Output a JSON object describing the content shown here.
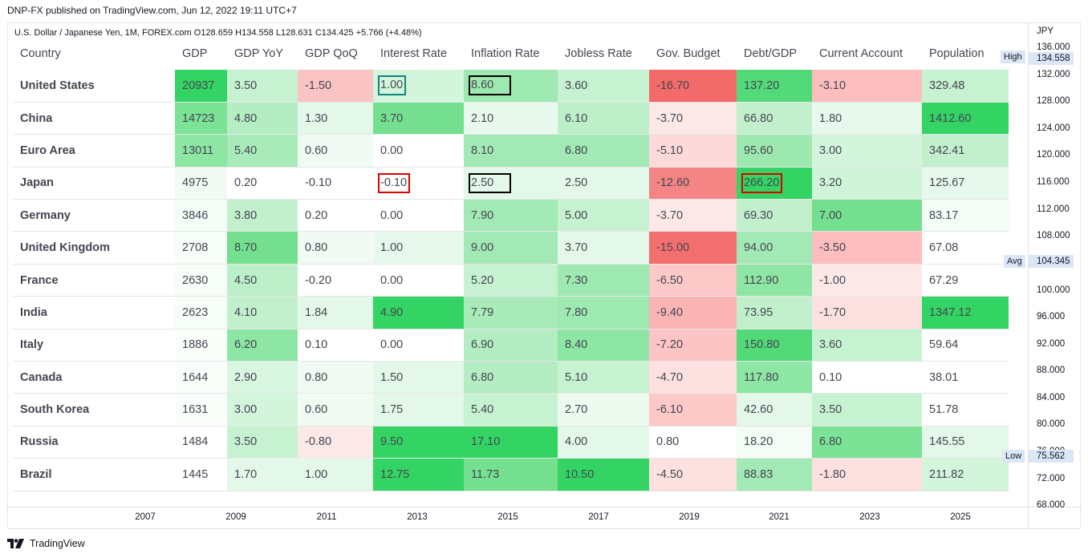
{
  "published": "DNP-FX published on TradingView.com, Jun 12, 2022 19:11 UTC+7",
  "symbol_line": "U.S. Dollar / Japanese Yen, 1M, FOREX.com  O128.659  H134.558  L128.631  C134.425  +5.766 (+4.48%)",
  "currency": "JPY",
  "price_ticks": [
    "136.000",
    "132.000",
    "128.000",
    "124.000",
    "120.000",
    "116.000",
    "112.000",
    "108.000",
    "100.000",
    "96.000",
    "92.000",
    "88.000",
    "84.000",
    "80.000",
    "76.000",
    "72.000",
    "68.000"
  ],
  "tags": {
    "high_label": "High",
    "high_value": "134.558",
    "avg_label": "Avg",
    "avg_value": "104.345",
    "low_label": "Low",
    "low_value": "75.562"
  },
  "time_ticks": [
    "2007",
    "2009",
    "2011",
    "2013",
    "2015",
    "2017",
    "2019",
    "2021",
    "2023",
    "2025"
  ],
  "brand": "TradingView",
  "colors": {
    "green_strong": "#33d463",
    "green_mid": "#74e08f",
    "green_light": "#b4edc2",
    "green_pale": "#e4f8e9",
    "red_strong": "#f36f6f",
    "red_mid": "#fbb4b4",
    "red_light": "#fde0e0",
    "neutral": "#ffffff"
  },
  "table": {
    "headers": [
      "Country",
      "GDP",
      "GDP YoY",
      "GDP QoQ",
      "Interest Rate",
      "Inflation Rate",
      "Jobless Rate",
      "Gov. Budget",
      "Debt/GDP",
      "Current Account",
      "Population"
    ],
    "rows": [
      {
        "country": "United States",
        "cells": [
          {
            "v": "20937",
            "c": "#33d463"
          },
          {
            "v": "3.50",
            "c": "#c7f2d1"
          },
          {
            "v": "-1.50",
            "c": "#fbc4c4"
          },
          {
            "v": "1.00",
            "c": "#d3f5dc",
            "box": "teal"
          },
          {
            "v": "8.60",
            "c": "#9ee8b1",
            "box": "black"
          },
          {
            "v": "3.60",
            "c": "#c7f2d1"
          },
          {
            "v": "-16.70",
            "c": "#f36a6a"
          },
          {
            "v": "137.20",
            "c": "#52d978"
          },
          {
            "v": "-3.10",
            "c": "#fbbdbd"
          },
          {
            "v": "329.48",
            "c": "#c7f2d1"
          }
        ]
      },
      {
        "country": "China",
        "cells": [
          {
            "v": "14723",
            "c": "#7ce295"
          },
          {
            "v": "4.80",
            "c": "#b4edc2"
          },
          {
            "v": "1.30",
            "c": "#e4f8e9"
          },
          {
            "v": "3.70",
            "c": "#74e08f"
          },
          {
            "v": "2.10",
            "c": "#eaf9ee"
          },
          {
            "v": "6.10",
            "c": "#bdefc9"
          },
          {
            "v": "-3.70",
            "c": "#fde8e8"
          },
          {
            "v": "66.80",
            "c": "#c2f0cd"
          },
          {
            "v": "1.80",
            "c": "#e7f9ec"
          },
          {
            "v": "1412.60",
            "c": "#33d463"
          }
        ]
      },
      {
        "country": "Euro Area",
        "cells": [
          {
            "v": "13011",
            "c": "#8de6a3"
          },
          {
            "v": "5.40",
            "c": "#a8ebb9"
          },
          {
            "v": "0.60",
            "c": "#f1fbf4"
          },
          {
            "v": "0.00",
            "c": "#ffffff"
          },
          {
            "v": "8.10",
            "c": "#a3e9b5"
          },
          {
            "v": "6.80",
            "c": "#a3e9b5"
          },
          {
            "v": "-5.10",
            "c": "#fdd9d9"
          },
          {
            "v": "95.60",
            "c": "#9ce8ae"
          },
          {
            "v": "3.00",
            "c": "#d3f5dc"
          },
          {
            "v": "342.41",
            "c": "#c2f0cd"
          }
        ]
      },
      {
        "country": "Japan",
        "cells": [
          {
            "v": "4975",
            "c": "#f1fbf4"
          },
          {
            "v": "0.20",
            "c": "#ffffff"
          },
          {
            "v": "-0.10",
            "c": "#ffffff"
          },
          {
            "v": "-0.10",
            "c": "#ffffff",
            "box": "red"
          },
          {
            "v": "2.50",
            "c": "#e4f8e9",
            "box": "black"
          },
          {
            "v": "2.50",
            "c": "#e4f8e9"
          },
          {
            "v": "-12.60",
            "c": "#f58585"
          },
          {
            "v": "266.20",
            "c": "#33d463",
            "box": "red"
          },
          {
            "v": "3.20",
            "c": "#d0f4da"
          },
          {
            "v": "125.67",
            "c": "#e7f9ec"
          }
        ]
      },
      {
        "country": "Germany",
        "cells": [
          {
            "v": "3846",
            "c": "#f4fcf6"
          },
          {
            "v": "3.80",
            "c": "#c2f0cd"
          },
          {
            "v": "0.20",
            "c": "#ffffff"
          },
          {
            "v": "0.00",
            "c": "#ffffff"
          },
          {
            "v": "7.90",
            "c": "#a3e9b5"
          },
          {
            "v": "5.00",
            "c": "#c7f2d1"
          },
          {
            "v": "-3.70",
            "c": "#fde8e8"
          },
          {
            "v": "69.30",
            "c": "#c2f0cd"
          },
          {
            "v": "7.00",
            "c": "#74e08f"
          },
          {
            "v": "83.17",
            "c": "#f4fcf6"
          }
        ]
      },
      {
        "country": "United Kingdom",
        "cells": [
          {
            "v": "2708",
            "c": "#f7fdf8"
          },
          {
            "v": "8.70",
            "c": "#74e08f"
          },
          {
            "v": "0.80",
            "c": "#f1fbf4"
          },
          {
            "v": "1.00",
            "c": "#e7f9ec"
          },
          {
            "v": "9.00",
            "c": "#a3e9b5"
          },
          {
            "v": "3.70",
            "c": "#e4f8e9"
          },
          {
            "v": "-15.00",
            "c": "#f36f6f"
          },
          {
            "v": "94.00",
            "c": "#a3e9b5"
          },
          {
            "v": "-3.50",
            "c": "#fbbdbd"
          },
          {
            "v": "67.08",
            "c": "#ffffff"
          }
        ]
      },
      {
        "country": "France",
        "cells": [
          {
            "v": "2630",
            "c": "#f7fdf8"
          },
          {
            "v": "4.50",
            "c": "#bdefc9"
          },
          {
            "v": "-0.20",
            "c": "#ffffff"
          },
          {
            "v": "0.00",
            "c": "#ffffff"
          },
          {
            "v": "5.20",
            "c": "#c7f2d1"
          },
          {
            "v": "7.30",
            "c": "#9ee8b1"
          },
          {
            "v": "-6.50",
            "c": "#fcc8c8"
          },
          {
            "v": "112.90",
            "c": "#8de6a3"
          },
          {
            "v": "-1.00",
            "c": "#fde8e8"
          },
          {
            "v": "67.29",
            "c": "#ffffff"
          }
        ]
      },
      {
        "country": "India",
        "cells": [
          {
            "v": "2623",
            "c": "#f7fdf8"
          },
          {
            "v": "4.10",
            "c": "#c2f0cd"
          },
          {
            "v": "1.84",
            "c": "#e4f8e9"
          },
          {
            "v": "4.90",
            "c": "#33d463"
          },
          {
            "v": "7.79",
            "c": "#a8ebb9"
          },
          {
            "v": "7.80",
            "c": "#9ee8b1"
          },
          {
            "v": "-9.40",
            "c": "#fbb4b4"
          },
          {
            "v": "73.95",
            "c": "#c2f0cd"
          },
          {
            "v": "-1.70",
            "c": "#fde0e0"
          },
          {
            "v": "1347.12",
            "c": "#33d463"
          }
        ]
      },
      {
        "country": "Italy",
        "cells": [
          {
            "v": "1886",
            "c": "#fafefb"
          },
          {
            "v": "6.20",
            "c": "#8de6a3"
          },
          {
            "v": "0.10",
            "c": "#ffffff"
          },
          {
            "v": "0.00",
            "c": "#ffffff"
          },
          {
            "v": "6.90",
            "c": "#b4edc2"
          },
          {
            "v": "8.40",
            "c": "#8de6a3"
          },
          {
            "v": "-7.20",
            "c": "#fcc4c4"
          },
          {
            "v": "150.80",
            "c": "#52d978"
          },
          {
            "v": "3.60",
            "c": "#c7f2d1"
          },
          {
            "v": "59.64",
            "c": "#ffffff"
          }
        ]
      },
      {
        "country": "Canada",
        "cells": [
          {
            "v": "1644",
            "c": "#fafefb"
          },
          {
            "v": "2.90",
            "c": "#d9f6e1"
          },
          {
            "v": "0.80",
            "c": "#f1fbf4"
          },
          {
            "v": "1.50",
            "c": "#e4f8e9"
          },
          {
            "v": "6.80",
            "c": "#b4edc2"
          },
          {
            "v": "5.10",
            "c": "#c7f2d1"
          },
          {
            "v": "-4.70",
            "c": "#fde0e0"
          },
          {
            "v": "117.80",
            "c": "#8de6a3"
          },
          {
            "v": "0.10",
            "c": "#ffffff"
          },
          {
            "v": "38.01",
            "c": "#ffffff"
          }
        ]
      },
      {
        "country": "South Korea",
        "cells": [
          {
            "v": "1631",
            "c": "#fafefb"
          },
          {
            "v": "3.00",
            "c": "#d3f5dc"
          },
          {
            "v": "0.60",
            "c": "#f1fbf4"
          },
          {
            "v": "1.75",
            "c": "#e4f8e9"
          },
          {
            "v": "5.40",
            "c": "#c7f2d1"
          },
          {
            "v": "2.70",
            "c": "#ecfaf0"
          },
          {
            "v": "-6.10",
            "c": "#fcc8c8"
          },
          {
            "v": "42.60",
            "c": "#e4f8e9"
          },
          {
            "v": "3.50",
            "c": "#c7f2d1"
          },
          {
            "v": "51.78",
            "c": "#ffffff"
          }
        ]
      },
      {
        "country": "Russia",
        "cells": [
          {
            "v": "1484",
            "c": "#ffffff"
          },
          {
            "v": "3.50",
            "c": "#c7f2d1"
          },
          {
            "v": "-0.80",
            "c": "#fde8e8"
          },
          {
            "v": "9.50",
            "c": "#33d463"
          },
          {
            "v": "17.10",
            "c": "#33d463"
          },
          {
            "v": "4.00",
            "c": "#e4f8e9"
          },
          {
            "v": "0.80",
            "c": "#ffffff"
          },
          {
            "v": "18.20",
            "c": "#f4fcf6"
          },
          {
            "v": "6.80",
            "c": "#7ce295"
          },
          {
            "v": "145.55",
            "c": "#e4f8e9"
          }
        ]
      },
      {
        "country": "Brazil",
        "cells": [
          {
            "v": "1445",
            "c": "#ffffff"
          },
          {
            "v": "1.70",
            "c": "#e4f8e9"
          },
          {
            "v": "1.00",
            "c": "#e4f8e9"
          },
          {
            "v": "12.75",
            "c": "#33d463"
          },
          {
            "v": "11.73",
            "c": "#74e08f"
          },
          {
            "v": "10.50",
            "c": "#33d463"
          },
          {
            "v": "-4.50",
            "c": "#fde0e0"
          },
          {
            "v": "88.83",
            "c": "#a3e9b5"
          },
          {
            "v": "-1.80",
            "c": "#fde0e0"
          },
          {
            "v": "211.82",
            "c": "#d3f5dc"
          }
        ]
      }
    ]
  }
}
